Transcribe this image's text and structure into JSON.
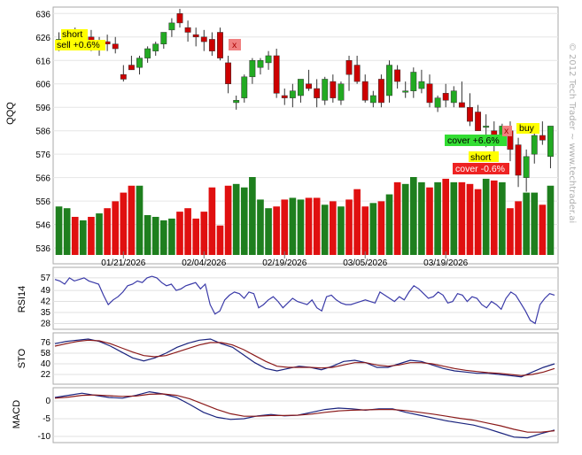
{
  "chart_data": [
    {
      "type": "candlestick",
      "ylabel": "QQQ",
      "ylim": [
        530,
        638
      ],
      "yticks": [
        636,
        626,
        616,
        606,
        596,
        586,
        576,
        566,
        556,
        546,
        536
      ],
      "xticks": [
        "01/21/2026",
        "02/04/2026",
        "02/19/2026",
        "03/05/2026",
        "03/19/2026"
      ],
      "candles": [
        [
          623,
          628,
          620,
          625
        ],
        [
          625,
          629,
          622,
          627
        ],
        [
          627,
          630,
          623,
          624
        ],
        [
          624,
          628,
          621,
          626
        ],
        [
          626,
          629,
          620,
          622
        ],
        [
          622,
          626,
          618,
          624
        ],
        [
          624,
          627,
          620,
          623
        ],
        [
          623,
          626,
          619,
          621
        ],
        [
          610,
          614,
          607,
          608
        ],
        [
          614,
          618,
          612,
          612
        ],
        [
          613,
          618,
          610,
          617
        ],
        [
          617,
          622,
          615,
          621
        ],
        [
          620,
          624,
          618,
          623
        ],
        [
          623,
          628,
          621,
          628
        ],
        [
          629,
          634,
          626,
          632
        ],
        [
          636,
          638,
          630,
          632
        ],
        [
          630,
          633,
          624,
          628
        ],
        [
          627,
          630,
          622,
          626
        ],
        [
          626,
          629,
          620,
          624
        ],
        [
          625,
          628,
          618,
          620
        ],
        [
          628,
          630,
          616,
          617
        ],
        [
          615,
          618,
          602,
          606
        ],
        [
          598,
          601,
          595,
          599
        ],
        [
          600,
          610,
          598,
          609
        ],
        [
          609,
          617,
          606,
          616
        ],
        [
          613,
          617,
          610,
          616
        ],
        [
          615,
          620,
          612,
          618
        ],
        [
          618,
          621,
          600,
          602
        ],
        [
          601,
          604,
          597,
          600
        ],
        [
          600,
          606,
          596,
          603
        ],
        [
          601,
          608,
          598,
          608
        ],
        [
          606,
          612,
          603,
          604
        ],
        [
          604,
          608,
          596,
          600
        ],
        [
          599,
          609,
          597,
          608
        ],
        [
          607,
          610,
          598,
          600
        ],
        [
          599,
          607,
          597,
          606
        ],
        [
          616,
          618,
          603,
          610
        ],
        [
          614,
          618,
          606,
          607
        ],
        [
          607,
          610,
          598,
          599
        ],
        [
          598,
          603,
          596,
          601
        ],
        [
          608,
          610,
          596,
          598
        ],
        [
          601,
          616,
          598,
          614
        ],
        [
          612,
          614,
          604,
          607
        ],
        [
          603,
          607,
          600,
          603
        ],
        [
          603,
          613,
          600,
          611
        ],
        [
          604,
          612,
          602,
          607
        ],
        [
          606,
          610,
          596,
          598
        ],
        [
          596,
          601,
          594,
          600
        ],
        [
          602,
          606,
          596,
          599
        ],
        [
          598,
          605,
          596,
          603
        ],
        [
          598,
          607,
          596,
          596
        ],
        [
          596,
          602,
          588,
          590
        ],
        [
          594,
          597,
          586,
          586
        ],
        [
          588,
          593,
          579,
          588
        ],
        [
          586,
          590,
          574,
          580
        ],
        [
          581,
          589,
          580,
          588
        ],
        [
          586,
          590,
          573,
          578
        ],
        [
          580,
          583,
          562,
          567
        ],
        [
          566,
          578,
          560,
          575
        ],
        [
          576,
          586,
          572,
          584
        ],
        [
          584,
          590,
          580,
          582
        ],
        [
          575,
          588,
          570,
          588
        ]
      ],
      "volume": [
        0.28,
        0.27,
        0.22,
        0.2,
        0.22,
        0.24,
        0.27,
        0.31,
        0.36,
        0.4,
        0.4,
        0.23,
        0.22,
        0.2,
        0.21,
        0.25,
        0.27,
        0.21,
        0.25,
        0.39,
        0.17,
        0.4,
        0.41,
        0.39,
        0.45,
        0.32,
        0.27,
        0.28,
        0.32,
        0.33,
        0.32,
        0.33,
        0.33,
        0.29,
        0.31,
        0.28,
        0.32,
        0.38,
        0.28,
        0.3,
        0.31,
        0.35,
        0.42,
        0.41,
        0.45,
        0.42,
        0.39,
        0.42,
        0.44,
        0.42,
        0.42,
        0.41,
        0.38,
        0.44,
        0.43,
        0.42,
        0.27,
        0.31,
        0.36,
        0.36,
        0.29,
        0.4
      ]
    },
    {
      "type": "line",
      "ylabel": "RSI14",
      "yticks": [
        57,
        49,
        42,
        35,
        28
      ],
      "ylim": [
        26,
        62
      ],
      "values": [
        56,
        55,
        53,
        57,
        55,
        56,
        57,
        55,
        54,
        53,
        46,
        40,
        43,
        45,
        48,
        52,
        53,
        55,
        54,
        57,
        58,
        57,
        54,
        52,
        53,
        49,
        50,
        52,
        53,
        54,
        50,
        53,
        40,
        34,
        36,
        43,
        46,
        48,
        47,
        44,
        48,
        47,
        38,
        40,
        43,
        45,
        42,
        38,
        41,
        44,
        42,
        41,
        40,
        43,
        38,
        36,
        45,
        46,
        43,
        41,
        40,
        40,
        41,
        42,
        43,
        42,
        41,
        48,
        46,
        44,
        42,
        45,
        43,
        48,
        52,
        50,
        47,
        44,
        45,
        48,
        46,
        41,
        42,
        47,
        46,
        42,
        45,
        44,
        40,
        38,
        42,
        40,
        37,
        44,
        48,
        46,
        41,
        36,
        30,
        28,
        40,
        44,
        47,
        46
      ]
    },
    {
      "type": "line",
      "ylabel": "STO",
      "yticks": [
        76,
        58,
        40,
        22
      ],
      "ylim": [
        10,
        88
      ],
      "series": [
        {
          "color": "#1a237e",
          "values": [
            74,
            78,
            80,
            82,
            78,
            70,
            60,
            50,
            45,
            50,
            58,
            68,
            75,
            80,
            82,
            74,
            68,
            55,
            42,
            32,
            28,
            32,
            36,
            34,
            30,
            36,
            44,
            46,
            42,
            34,
            34,
            40,
            46,
            44,
            38,
            32,
            28,
            26,
            24,
            24,
            22,
            20,
            18,
            26,
            34,
            40
          ]
        },
        {
          "color": "#8b1a1a",
          "values": [
            70,
            74,
            78,
            80,
            79,
            74,
            67,
            60,
            54,
            52,
            54,
            60,
            66,
            72,
            76,
            76,
            72,
            64,
            54,
            44,
            36,
            34,
            34,
            34,
            33,
            34,
            38,
            42,
            42,
            38,
            36,
            38,
            42,
            42,
            40,
            36,
            32,
            29,
            27,
            25,
            24,
            22,
            20,
            22,
            26,
            32
          ]
        }
      ]
    },
    {
      "type": "line",
      "ylabel": "MACD",
      "yticks": [
        0,
        -5,
        -10
      ],
      "ylim": [
        -11,
        3
      ],
      "series": [
        {
          "color": "#1a237e",
          "values": [
            1.0,
            1.6,
            2.2,
            1.6,
            1.0,
            0.8,
            1.6,
            2.6,
            2.0,
            1.0,
            -1.0,
            -3.2,
            -4.6,
            -5.2,
            -5.0,
            -4.2,
            -3.8,
            -4.2,
            -4.0,
            -3.2,
            -2.4,
            -2.0,
            -2.2,
            -2.6,
            -2.2,
            -2.2,
            -3.2,
            -4.0,
            -4.8,
            -5.6,
            -6.2,
            -6.8,
            -7.8,
            -9.0,
            -10.2,
            -10.4,
            -9.2,
            -8.2
          ]
        },
        {
          "color": "#8b1a1a",
          "values": [
            0.8,
            1.1,
            1.6,
            1.7,
            1.5,
            1.3,
            1.4,
            1.9,
            2.0,
            1.6,
            0.6,
            -0.9,
            -2.4,
            -3.6,
            -4.3,
            -4.3,
            -4.1,
            -4.1,
            -4.0,
            -3.7,
            -3.2,
            -2.8,
            -2.6,
            -2.5,
            -2.4,
            -2.4,
            -2.7,
            -3.2,
            -3.7,
            -4.3,
            -4.9,
            -5.4,
            -6.2,
            -7.0,
            -8.0,
            -8.8,
            -8.8,
            -8.4
          ]
        }
      ]
    }
  ],
  "annotations": {
    "signals": [
      {
        "text": "short",
        "color": "#ffff00"
      },
      {
        "text": "sell +0.6%",
        "color": "#ffff00"
      },
      {
        "text": "x",
        "color": "#f08080"
      },
      {
        "text": "cover +6.6%",
        "color": "#33dd33"
      },
      {
        "text": "buy",
        "color": "#ffff00"
      },
      {
        "text": "short",
        "color": "#ffff00"
      },
      {
        "text": "cover -0.6%",
        "color": "#ee2222"
      },
      {
        "text": "x",
        "color": "#f08080"
      }
    ],
    "watermark": "© 2012 Tech Trader ~ www.techtrader.ai"
  },
  "colors": {
    "up": "#22aa22",
    "down": "#cc0000",
    "bullish_volume": "#1e7f1e",
    "bearish_volume": "#e01010"
  }
}
